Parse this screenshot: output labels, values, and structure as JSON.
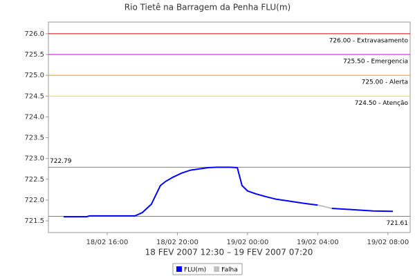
{
  "chart_data": {
    "type": "line",
    "title": "Rio Tietê na Barragem da Penha FLU(m)",
    "x_label": "18 FEV 2007 12:30 – 19 FEV 2007 07:20",
    "xlim": [
      "2007-02-18T12:39",
      "2007-02-19T09:16"
    ],
    "xticks": [
      {
        "value": "2007-02-18T16:00",
        "label": "18/02 16:00"
      },
      {
        "value": "2007-02-18T20:00",
        "label": "18/02 20:00"
      },
      {
        "value": "2007-02-19T00:00",
        "label": "19/02 00:00"
      },
      {
        "value": "2007-02-19T04:00",
        "label": "19/02 04:00"
      },
      {
        "value": "2007-02-19T08:00",
        "label": "19/02 08:00"
      }
    ],
    "ylim": [
      721.22,
      726.28
    ],
    "yticks": [
      721.5,
      {
        "value": 722,
        "label": "722.0"
      },
      722.5,
      {
        "value": 723,
        "label": "723.0"
      },
      723.5,
      {
        "value": 724,
        "label": "724.0"
      },
      724.5,
      {
        "value": 725,
        "label": "725.0"
      },
      725.5,
      {
        "value": 726,
        "label": "726.0"
      }
    ],
    "markers": [
      {
        "value": 726.0,
        "label": "726.00 - Extravasamento",
        "color": "#cc0000",
        "side": "right"
      },
      {
        "value": 725.5,
        "label": "725.50 - Emergencia",
        "color": "#cc00cc",
        "side": "right"
      },
      {
        "value": 725.0,
        "label": "725.00 - Alerta",
        "color": "#e0a000",
        "side": "right"
      },
      {
        "value": 724.5,
        "label": "724.50 - Atenção",
        "color": "#e8e800",
        "side": "right"
      },
      {
        "value": 722.79,
        "label": "722.79",
        "color": "#808080",
        "side": "left"
      },
      {
        "value": 721.61,
        "label": "721.61",
        "color": "#808080",
        "side": "right"
      }
    ],
    "series": [
      {
        "name": "FLU(m)",
        "color": "#0000ff",
        "x": [
          "2007-02-18T13:31",
          "2007-02-18T14:49",
          "2007-02-18T15:00",
          "2007-02-18T16:00",
          "2007-02-18T17:00",
          "2007-02-18T17:35",
          "2007-02-18T18:00",
          "2007-02-18T18:31",
          "2007-02-18T19:02",
          "2007-02-18T19:20",
          "2007-02-18T19:45",
          "2007-02-18T20:15",
          "2007-02-18T20:45",
          "2007-02-18T21:15",
          "2007-02-18T21:45",
          "2007-02-18T22:15",
          "2007-02-18T23:00",
          "2007-02-18T23:25",
          "2007-02-18T23:41",
          "2007-02-19T00:00",
          "2007-02-19T00:28",
          "2007-02-19T01:04",
          "2007-02-19T01:39",
          "2007-02-19T02:27",
          "2007-02-19T03:14",
          "2007-02-19T04:00"
        ],
        "values": [
          721.6,
          721.6,
          721.62,
          721.62,
          721.62,
          721.62,
          721.7,
          721.9,
          722.35,
          722.45,
          722.55,
          722.65,
          722.72,
          722.75,
          722.78,
          722.79,
          722.79,
          722.78,
          722.35,
          722.22,
          722.15,
          722.08,
          722.02,
          721.97,
          721.92,
          721.88
        ]
      },
      {
        "name": "Falha",
        "color": "#c0c0c0",
        "x": [
          "2007-02-19T04:00",
          "2007-02-19T04:48"
        ],
        "values": [
          721.88,
          721.8
        ]
      },
      {
        "name": "FLU(m)",
        "color": "#0000ff",
        "legend": false,
        "x": [
          "2007-02-19T04:48",
          "2007-02-19T05:35",
          "2007-02-19T06:23",
          "2007-02-19T07:10",
          "2007-02-19T08:17"
        ],
        "values": [
          721.8,
          721.78,
          721.76,
          721.74,
          721.73
        ]
      }
    ]
  }
}
